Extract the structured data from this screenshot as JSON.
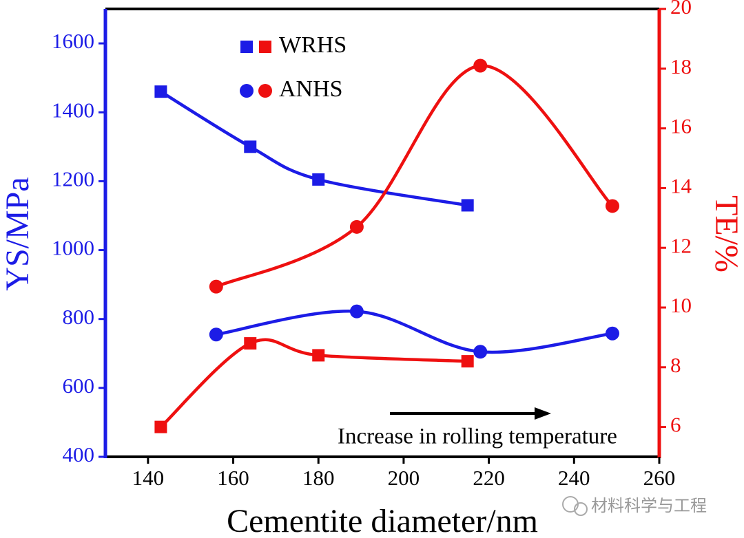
{
  "chart_data": {
    "type": "line",
    "x_label": "Cementite diameter/nm",
    "y_label": "YS/MPa",
    "y2_label": "TE/%",
    "annotation": "Increase in rolling temperature",
    "watermark": "材料科学与工程",
    "xlim": [
      130,
      260
    ],
    "xticks": [
      140,
      160,
      180,
      200,
      220,
      240,
      260
    ],
    "ylim": [
      400,
      1700
    ],
    "yticks": [
      400,
      600,
      800,
      1000,
      1200,
      1400,
      1600
    ],
    "y2lim": [
      5,
      20
    ],
    "y2ticks": [
      6,
      8,
      10,
      12,
      14,
      16,
      18,
      20
    ],
    "y_color": "#1c1ce6",
    "y2_color": "#ee1010",
    "series": [
      {
        "name": "WRHS",
        "marker": "square",
        "color": "#1c1ce6",
        "x": [
          143,
          164,
          180,
          215
        ],
        "values": [
          1460,
          1300,
          1205,
          1130
        ]
      },
      {
        "name": "WRHS",
        "marker": "square",
        "color": "#ee1010",
        "axis": "y2",
        "x": [
          143,
          164,
          180,
          215
        ],
        "values": [
          6.0,
          8.8,
          8.4,
          8.2
        ]
      },
      {
        "name": "ANHS",
        "marker": "circle",
        "color": "#1c1ce6",
        "x": [
          156,
          189,
          218,
          249
        ],
        "values": [
          755,
          822,
          705,
          758
        ]
      },
      {
        "name": "ANHS",
        "marker": "circle",
        "color": "#ee1010",
        "axis": "y2",
        "x": [
          156,
          189,
          218,
          249
        ],
        "values": [
          10.7,
          12.7,
          18.1,
          13.4
        ]
      }
    ]
  }
}
